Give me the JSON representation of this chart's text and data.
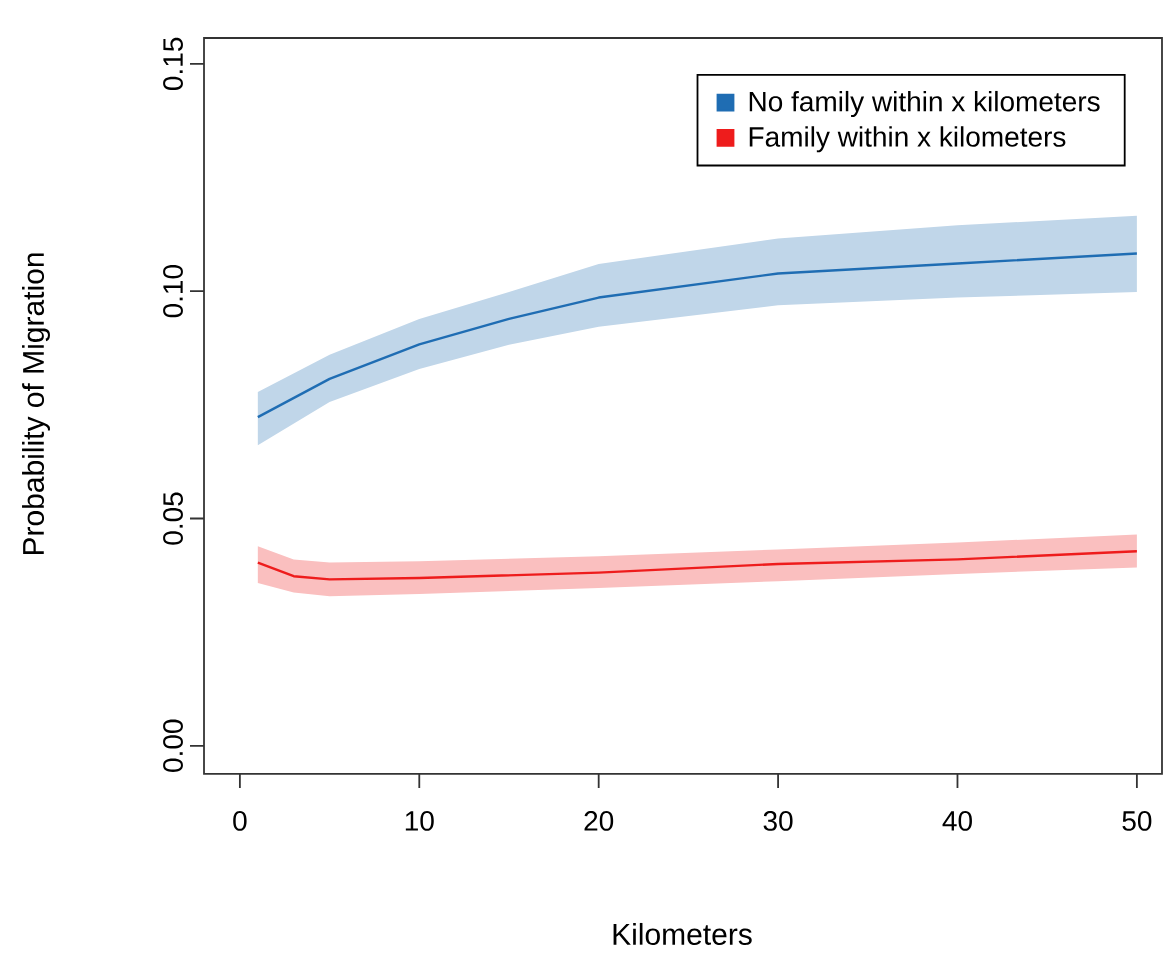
{
  "chart_data": {
    "type": "line",
    "xlabel": "Kilometers",
    "ylabel": "Probability of Migration",
    "xlim": [
      -2,
      51.4
    ],
    "ylim": [
      -0.0062,
      0.1557
    ],
    "xticks": [
      0,
      10,
      20,
      30,
      40,
      50
    ],
    "yticks": [
      {
        "value": 0,
        "label": "0.00"
      },
      {
        "value": 0.05,
        "label": "0.05"
      },
      {
        "value": 0.1,
        "label": "0.10"
      },
      {
        "value": 0.15,
        "label": "0.15"
      }
    ],
    "legend": "top right",
    "series": [
      {
        "name": "No family within x kilometers",
        "color": "#1f6db3",
        "x": [
          1,
          5,
          10,
          15,
          20,
          30,
          40,
          50
        ],
        "values": [
          0.0723,
          0.0807,
          0.0883,
          0.0939,
          0.0986,
          0.1039,
          0.1061,
          0.1083
        ],
        "lower": [
          0.0661,
          0.0756,
          0.0829,
          0.0882,
          0.0922,
          0.0969,
          0.0986,
          0.0998
        ],
        "upper": [
          0.0778,
          0.086,
          0.0939,
          0.0998,
          0.106,
          0.1116,
          0.1145,
          0.1166
        ]
      },
      {
        "name": "Family within x kilometers",
        "color": "#ee1c1c",
        "x": [
          1,
          3,
          5,
          10,
          20,
          30,
          40,
          50
        ],
        "values": [
          0.0403,
          0.0373,
          0.0366,
          0.0369,
          0.0381,
          0.04,
          0.041,
          0.0428
        ],
        "lower": [
          0.0358,
          0.0337,
          0.0329,
          0.0334,
          0.0347,
          0.0362,
          0.0378,
          0.0392
        ],
        "upper": [
          0.0439,
          0.041,
          0.0403,
          0.0406,
          0.0417,
          0.0432,
          0.0447,
          0.0465
        ]
      }
    ]
  }
}
